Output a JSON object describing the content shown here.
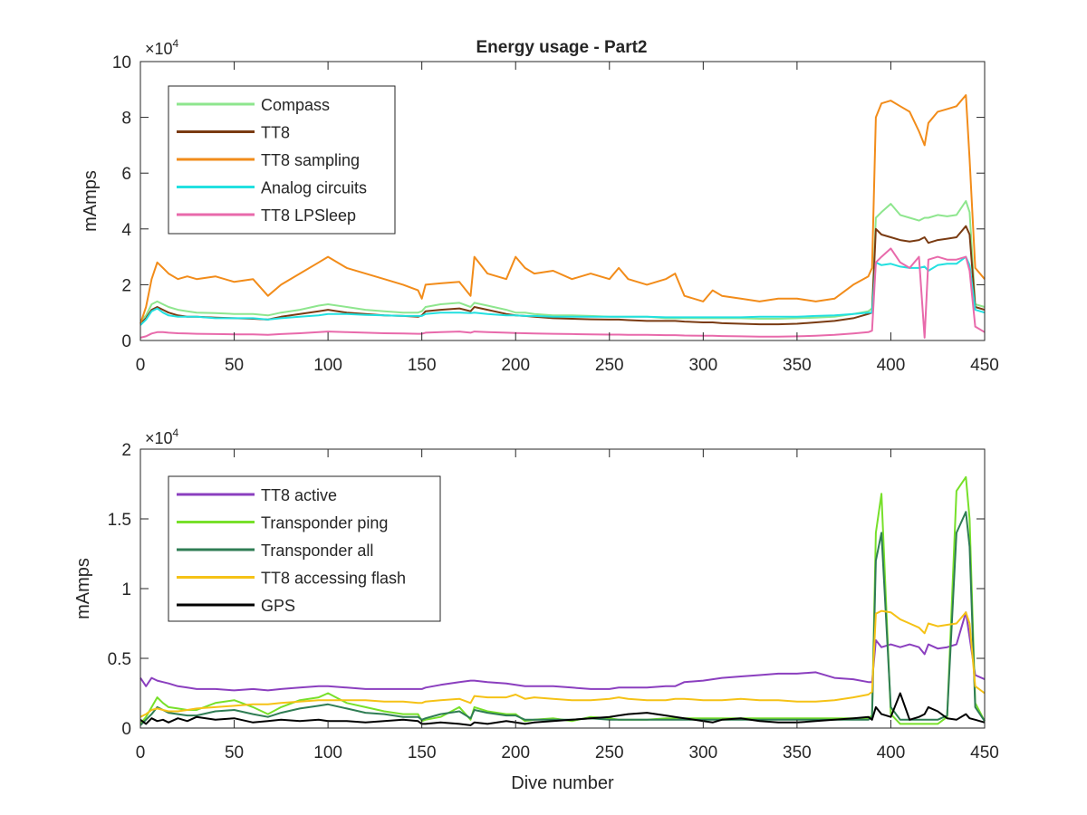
{
  "figure": {
    "title": "Energy usage - Part2"
  },
  "chart_data": [
    {
      "type": "line",
      "title": "Energy usage - Part2",
      "xlabel": "",
      "ylabel": "mAmps",
      "xlim": [
        0,
        450
      ],
      "ylim": [
        0,
        100000
      ],
      "exponent_label": "×10",
      "exponent_power": "4",
      "y_scale_divisor": 10000,
      "x_ticks": [
        0,
        50,
        100,
        150,
        200,
        250,
        300,
        350,
        400,
        450
      ],
      "y_ticks": [
        0,
        2,
        4,
        6,
        8,
        10
      ],
      "grid": false,
      "legend_position": "top-left",
      "x": [
        0,
        3,
        6,
        9,
        12,
        15,
        20,
        25,
        30,
        40,
        50,
        60,
        68,
        75,
        85,
        95,
        100,
        110,
        120,
        130,
        140,
        148,
        150,
        152,
        160,
        170,
        176,
        178,
        185,
        195,
        200,
        205,
        210,
        220,
        230,
        240,
        250,
        255,
        260,
        270,
        280,
        285,
        290,
        300,
        305,
        310,
        320,
        330,
        340,
        350,
        360,
        370,
        380,
        388,
        390,
        392,
        395,
        400,
        405,
        410,
        415,
        418,
        420,
        425,
        430,
        435,
        440,
        442,
        445,
        450
      ],
      "series": [
        {
          "name": "Compass",
          "color": "#8ee68e",
          "values": [
            7000,
            9000,
            13000,
            14000,
            13000,
            12000,
            11000,
            10500,
            10000,
            9800,
            9500,
            9500,
            9000,
            10000,
            11000,
            12500,
            13000,
            12000,
            11000,
            10500,
            10000,
            10000,
            10500,
            12000,
            13000,
            13500,
            12000,
            13500,
            12500,
            11000,
            10000,
            10000,
            9500,
            9000,
            9000,
            8800,
            8500,
            8500,
            8500,
            8500,
            8000,
            8000,
            8000,
            8000,
            8000,
            8000,
            8000,
            7800,
            7800,
            8000,
            8200,
            8500,
            9500,
            10500,
            11500,
            44000,
            46000,
            49000,
            45000,
            44000,
            43000,
            44000,
            44000,
            45000,
            44500,
            45000,
            50000,
            46000,
            13000,
            12000
          ]
        },
        {
          "name": "TT8",
          "color": "#7a3b12",
          "values": [
            6000,
            8000,
            11000,
            12000,
            11000,
            10000,
            9000,
            8500,
            8500,
            8200,
            8000,
            7800,
            7500,
            8500,
            9500,
            10500,
            11000,
            10000,
            9500,
            9000,
            8800,
            8500,
            9000,
            10500,
            11000,
            11500,
            10500,
            12000,
            11000,
            9500,
            9000,
            8800,
            8500,
            8000,
            7800,
            7600,
            7500,
            7500,
            7300,
            7000,
            7000,
            7000,
            6800,
            6500,
            6500,
            6200,
            6000,
            5800,
            5800,
            6000,
            6500,
            7000,
            8000,
            9500,
            10000,
            40000,
            38000,
            37000,
            36000,
            35500,
            36000,
            37000,
            35000,
            36000,
            36500,
            37000,
            41000,
            38000,
            12000,
            11000
          ]
        },
        {
          "name": "TT8 sampling",
          "color": "#f28c1a",
          "values": [
            6000,
            12000,
            22000,
            28000,
            26000,
            24000,
            22000,
            23000,
            22000,
            23000,
            21000,
            22000,
            16000,
            20000,
            24000,
            28000,
            30000,
            26000,
            24000,
            22000,
            20000,
            18000,
            15000,
            20000,
            20500,
            21000,
            16000,
            30000,
            24000,
            22000,
            30000,
            26000,
            24000,
            25000,
            22000,
            24000,
            22000,
            26000,
            22000,
            20000,
            22000,
            24000,
            16000,
            14000,
            18000,
            16000,
            15000,
            14000,
            15000,
            15000,
            14000,
            15000,
            20000,
            23000,
            26000,
            80000,
            85000,
            86000,
            84000,
            82000,
            75000,
            70000,
            78000,
            82000,
            83000,
            84000,
            88000,
            65000,
            26000,
            22000
          ]
        },
        {
          "name": "Analog circuits",
          "color": "#22e0e0",
          "values": [
            5500,
            7500,
            10500,
            11500,
            10000,
            9000,
            8500,
            8500,
            8500,
            8000,
            8000,
            8000,
            7500,
            8000,
            8500,
            9000,
            9500,
            9500,
            9200,
            9000,
            8800,
            8800,
            8800,
            9500,
            10000,
            10000,
            9800,
            10000,
            9500,
            9000,
            9000,
            8800,
            8800,
            8500,
            8500,
            8500,
            8500,
            8500,
            8500,
            8500,
            8300,
            8300,
            8300,
            8300,
            8300,
            8300,
            8300,
            8500,
            8500,
            8500,
            8800,
            9000,
            9500,
            10000,
            10000,
            28000,
            27000,
            27500,
            26500,
            26000,
            26000,
            26500,
            25000,
            27000,
            27500,
            27500,
            30000,
            27000,
            11000,
            10000
          ]
        },
        {
          "name": "TT8 LPSleep",
          "color": "#e86aab",
          "values": [
            1000,
            1500,
            2500,
            3000,
            3000,
            2800,
            2600,
            2500,
            2400,
            2300,
            2200,
            2200,
            2000,
            2300,
            2600,
            3000,
            3200,
            3000,
            2800,
            2600,
            2500,
            2400,
            2400,
            2800,
            3000,
            3200,
            2800,
            3200,
            3000,
            2800,
            2700,
            2600,
            2500,
            2400,
            2300,
            2200,
            2100,
            2100,
            2000,
            2000,
            1900,
            1900,
            1800,
            1700,
            1700,
            1600,
            1500,
            1400,
            1400,
            1500,
            1700,
            2000,
            2500,
            3000,
            3500,
            28000,
            30000,
            33000,
            28000,
            26000,
            30000,
            1000,
            29000,
            30000,
            29000,
            29000,
            30000,
            25000,
            5000,
            3000
          ]
        }
      ]
    },
    {
      "type": "line",
      "title": "",
      "xlabel": "Dive number",
      "ylabel": "mAmps",
      "xlim": [
        0,
        450
      ],
      "ylim": [
        0,
        20000
      ],
      "exponent_label": "×10",
      "exponent_power": "4",
      "y_scale_divisor": 10000,
      "x_ticks": [
        0,
        50,
        100,
        150,
        200,
        250,
        300,
        350,
        400,
        450
      ],
      "y_ticks": [
        0,
        0.5,
        1,
        1.5,
        2
      ],
      "grid": false,
      "legend_position": "top-left",
      "x": [
        0,
        3,
        6,
        9,
        12,
        15,
        20,
        25,
        30,
        40,
        50,
        60,
        68,
        75,
        85,
        95,
        100,
        110,
        120,
        130,
        140,
        148,
        150,
        152,
        160,
        170,
        176,
        178,
        185,
        195,
        200,
        205,
        210,
        220,
        230,
        240,
        250,
        255,
        260,
        270,
        280,
        285,
        290,
        300,
        305,
        310,
        320,
        330,
        340,
        350,
        360,
        370,
        380,
        388,
        390,
        392,
        395,
        400,
        405,
        410,
        415,
        418,
        420,
        425,
        430,
        435,
        440,
        442,
        445,
        450
      ],
      "series": [
        {
          "name": "TT8 active",
          "color": "#8b3fbf",
          "values": [
            3600,
            3000,
            3600,
            3400,
            3300,
            3200,
            3000,
            2900,
            2800,
            2800,
            2700,
            2800,
            2700,
            2800,
            2900,
            3000,
            3000,
            2900,
            2800,
            2800,
            2800,
            2800,
            2800,
            2900,
            3100,
            3300,
            3400,
            3400,
            3300,
            3200,
            3100,
            3000,
            3000,
            3000,
            2900,
            2800,
            2800,
            2900,
            2900,
            2900,
            3000,
            3000,
            3300,
            3400,
            3500,
            3600,
            3700,
            3800,
            3900,
            3900,
            4000,
            3600,
            3500,
            3300,
            3300,
            6300,
            5800,
            6000,
            5800,
            6000,
            5800,
            5300,
            6000,
            5700,
            5800,
            6000,
            8300,
            6500,
            3800,
            3500
          ]
        },
        {
          "name": "Transponder ping",
          "color": "#77e02a",
          "values": [
            300,
            800,
            1500,
            2200,
            1800,
            1500,
            1400,
            1300,
            1300,
            1800,
            2000,
            1500,
            1000,
            1500,
            2000,
            2200,
            2500,
            1800,
            1500,
            1200,
            1000,
            1000,
            500,
            600,
            800,
            1500,
            600,
            1500,
            1200,
            1000,
            1000,
            500,
            600,
            700,
            500,
            800,
            700,
            600,
            600,
            600,
            700,
            700,
            700,
            700,
            700,
            700,
            700,
            700,
            700,
            700,
            700,
            700,
            700,
            700,
            900,
            14000,
            16800,
            1000,
            300,
            300,
            300,
            300,
            300,
            300,
            800,
            17000,
            18000,
            15000,
            1800,
            500
          ]
        },
        {
          "name": "Transponder all",
          "color": "#2f7d54",
          "values": [
            200,
            600,
            1000,
            1500,
            1300,
            1100,
            1000,
            900,
            900,
            1200,
            1300,
            1000,
            800,
            1100,
            1400,
            1600,
            1700,
            1400,
            1100,
            1000,
            800,
            800,
            600,
            700,
            1000,
            1200,
            700,
            1300,
            1100,
            900,
            900,
            600,
            600,
            600,
            600,
            700,
            600,
            600,
            600,
            600,
            600,
            600,
            600,
            600,
            600,
            600,
            600,
            600,
            600,
            600,
            600,
            600,
            600,
            600,
            800,
            12000,
            14000,
            1500,
            600,
            600,
            600,
            600,
            600,
            600,
            900,
            14000,
            15500,
            13000,
            1500,
            500
          ]
        },
        {
          "name": "TT8 accessing flash",
          "color": "#f5c216",
          "values": [
            800,
            1000,
            1300,
            1400,
            1300,
            1200,
            1200,
            1300,
            1400,
            1500,
            1600,
            1700,
            1700,
            1800,
            1900,
            2000,
            2000,
            2000,
            2000,
            1900,
            1900,
            1800,
            1800,
            1900,
            2000,
            2100,
            1800,
            2300,
            2200,
            2200,
            2400,
            2100,
            2200,
            2100,
            2000,
            2000,
            2100,
            2200,
            2100,
            2000,
            2000,
            2100,
            2100,
            2000,
            2000,
            2000,
            2100,
            2000,
            2000,
            1900,
            1900,
            2000,
            2200,
            2400,
            2600,
            8200,
            8400,
            8300,
            7800,
            7500,
            7200,
            6800,
            7500,
            7300,
            7400,
            7500,
            8300,
            7500,
            3000,
            2500
          ]
        },
        {
          "name": "GPS",
          "color": "#000000",
          "values": [
            600,
            300,
            700,
            500,
            600,
            400,
            700,
            500,
            800,
            600,
            700,
            400,
            500,
            600,
            500,
            600,
            500,
            500,
            400,
            500,
            600,
            500,
            300,
            300,
            400,
            300,
            200,
            400,
            300,
            500,
            400,
            300,
            400,
            500,
            600,
            700,
            800,
            900,
            1000,
            1100,
            900,
            800,
            700,
            500,
            400,
            600,
            700,
            500,
            400,
            400,
            500,
            600,
            700,
            800,
            600,
            1500,
            1000,
            800,
            2500,
            600,
            800,
            1000,
            1500,
            1200,
            700,
            600,
            1000,
            700,
            600,
            400
          ]
        }
      ]
    }
  ]
}
